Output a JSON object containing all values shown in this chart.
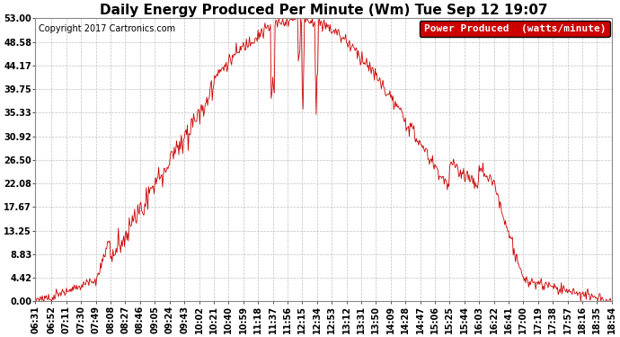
{
  "title": "Daily Energy Produced Per Minute (Wm) Tue Sep 12 19:07",
  "copyright": "Copyright 2017 Cartronics.com",
  "legend_label": "Power Produced  (watts/minute)",
  "legend_bg": "#cc0000",
  "legend_fg": "#ffffff",
  "line_color": "#cc0000",
  "bg_color": "#ffffff",
  "plot_bg_color": "#ffffff",
  "grid_color": "#c0c0c0",
  "ylim": [
    0,
    53.0
  ],
  "yticks": [
    0.0,
    4.42,
    8.83,
    13.25,
    17.67,
    22.08,
    26.5,
    30.92,
    35.33,
    39.75,
    44.17,
    48.58,
    53.0
  ],
  "xtick_labels": [
    "06:31",
    "06:52",
    "07:11",
    "07:30",
    "07:49",
    "08:08",
    "08:27",
    "08:46",
    "09:05",
    "09:24",
    "09:43",
    "10:02",
    "10:21",
    "10:40",
    "10:59",
    "11:18",
    "11:37",
    "11:56",
    "12:15",
    "12:34",
    "12:53",
    "13:12",
    "13:31",
    "13:50",
    "14:09",
    "14:28",
    "14:47",
    "15:06",
    "15:25",
    "15:44",
    "16:03",
    "16:22",
    "16:41",
    "17:00",
    "17:19",
    "17:38",
    "17:57",
    "18:16",
    "18:35",
    "18:54"
  ],
  "title_fontsize": 11,
  "copyright_fontsize": 7,
  "tick_fontsize": 7,
  "legend_fontsize": 8,
  "figwidth": 6.9,
  "figheight": 3.75,
  "dpi": 100
}
